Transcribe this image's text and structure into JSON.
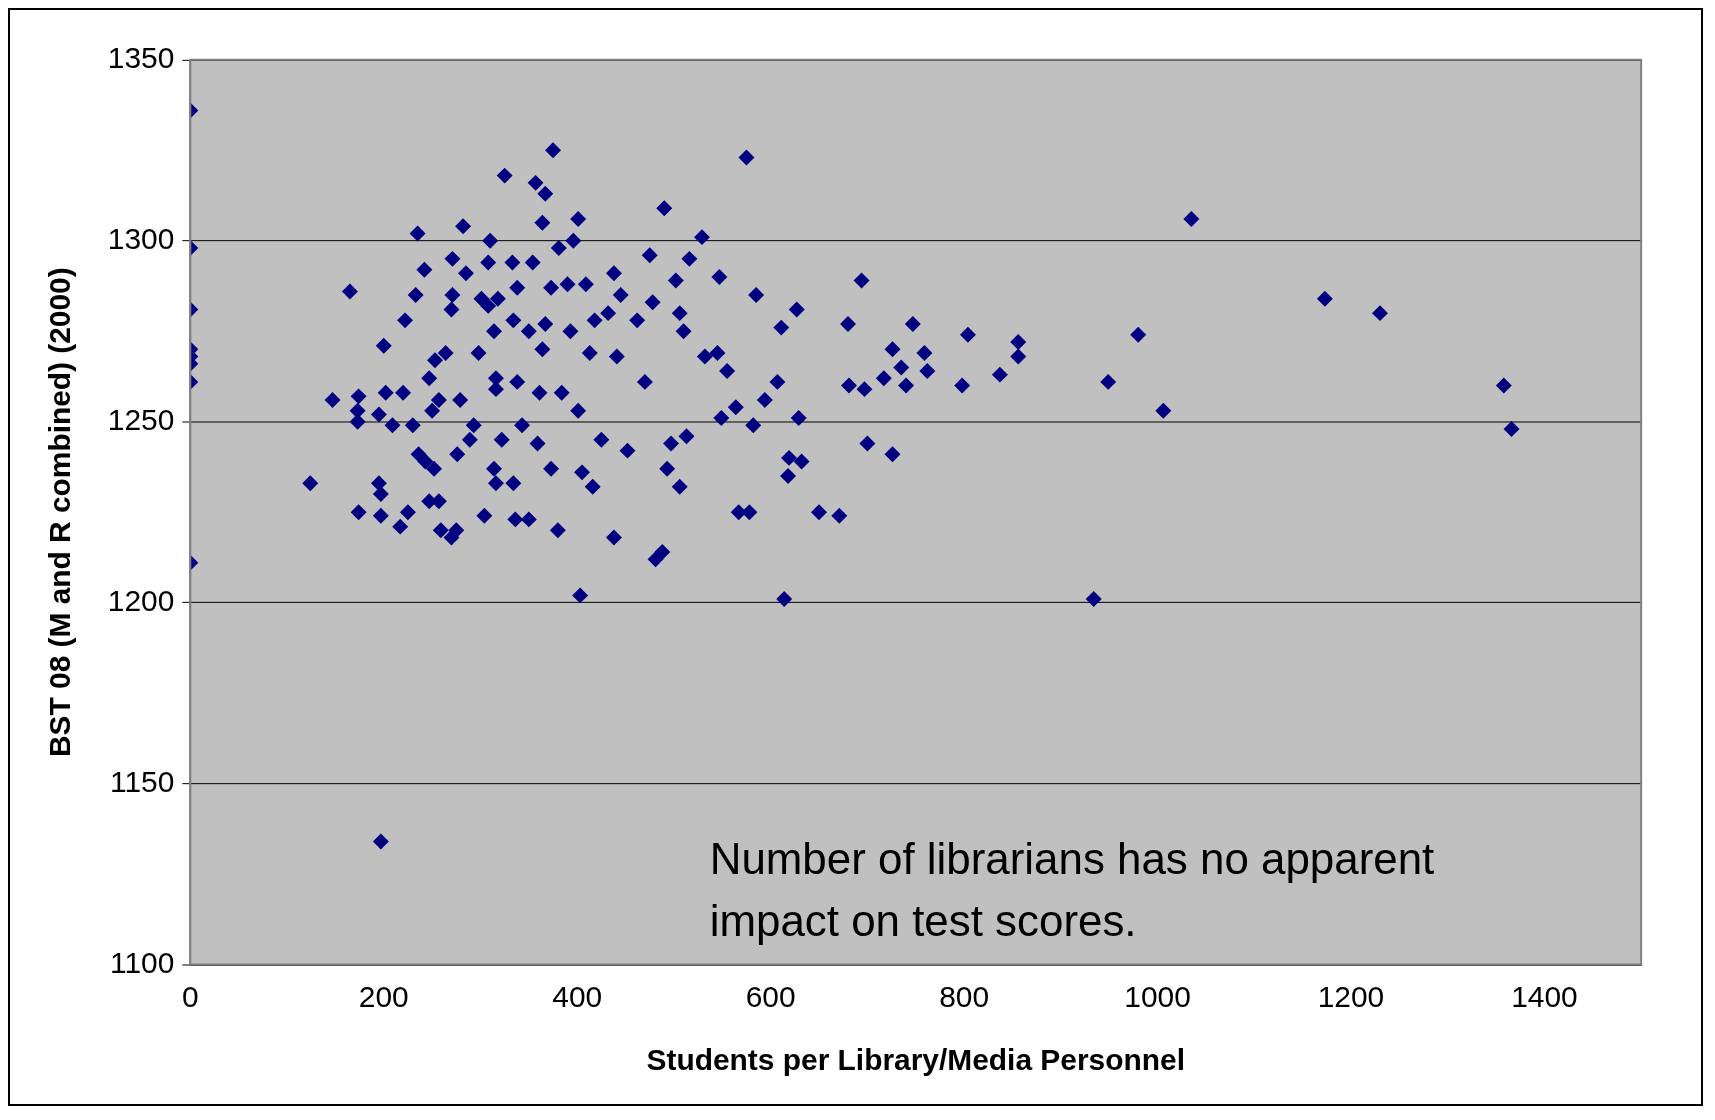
{
  "chart_data": {
    "type": "scatter",
    "xlabel": "Students per Library/Media Personnel",
    "ylabel": "BST 08 (M and R combined) (2000)",
    "annotations": [
      "Number of librarians has no apparent impact on test scores."
    ],
    "xlim": [
      0,
      1500
    ],
    "xticks": [
      0,
      200,
      400,
      600,
      800,
      1000,
      1200,
      1400
    ],
    "ylim": [
      1100,
      1350
    ],
    "yticks": [
      1100,
      1150,
      1200,
      1250,
      1300,
      1350
    ],
    "grid": "y",
    "legend": false,
    "marker": "diamond",
    "series": [
      {
        "color": "#000080",
        "x": [
          0,
          0,
          0,
          0,
          0,
          0,
          0,
          0,
          197,
          124,
          147,
          165,
          174,
          173,
          173,
          174,
          195,
          197,
          197,
          200,
          195,
          209,
          202,
          217,
          225,
          220,
          222,
          230,
          235,
          233,
          242,
          236,
          243,
          252,
          247,
          257,
          259,
          270,
          275,
          282,
          271,
          285,
          271,
          270,
          264,
          253,
          247,
          257,
          250,
          279,
          276,
          289,
          293,
          304,
          298,
          301,
          308,
          310,
          308,
          325,
          316,
          316,
          314,
          318,
          322,
          314,
          316,
          334,
          336,
          350,
          333,
          338,
          334,
          338,
          343,
          350,
          354,
          357,
          367,
          364,
          375,
          373,
          367,
          364,
          361,
          359,
          373,
          381,
          380,
          384,
          390,
          401,
          396,
          393,
          401,
          403,
          405,
          416,
          409,
          413,
          418,
          425,
          432,
          438,
          441,
          438,
          445,
          452,
          462,
          470,
          475,
          478,
          481,
          488,
          490,
          493,
          497,
          502,
          506,
          506,
          510,
          513,
          516,
          529,
          532,
          547,
          545,
          549,
          564,
          555,
          567,
          575,
          578,
          582,
          585,
          594,
          607,
          611,
          614,
          618,
          619,
          627,
          629,
          632,
          650,
          671,
          680,
          681,
          694,
          697,
          700,
          717,
          726,
          726,
          735,
          740,
          747,
          759,
          762,
          798,
          804,
          837,
          856,
          856,
          934,
          949,
          980,
          1006,
          1035,
          1173,
          1230,
          1358,
          1366
        ],
        "values": [
          1336,
          1298,
          1281,
          1270,
          1268,
          1266,
          1261,
          1211,
          1134,
          1233,
          1256,
          1286,
          1257,
          1253,
          1250,
          1225,
          1233,
          1230,
          1224,
          1271,
          1252,
          1249,
          1258,
          1221,
          1225,
          1258,
          1278,
          1249,
          1302,
          1285,
          1292,
          1241,
          1239,
          1237,
          1228,
          1228,
          1220,
          1218,
          1220,
          1304,
          1295,
          1291,
          1285,
          1281,
          1269,
          1267,
          1262,
          1256,
          1253,
          1256,
          1241,
          1245,
          1249,
          1224,
          1269,
          1284,
          1282,
          1300,
          1294,
          1318,
          1259,
          1262,
          1275,
          1284,
          1245,
          1237,
          1233,
          1233,
          1223,
          1223,
          1294,
          1287,
          1278,
          1261,
          1249,
          1275,
          1294,
          1316,
          1313,
          1305,
          1325,
          1287,
          1277,
          1270,
          1258,
          1244,
          1237,
          1298,
          1220,
          1258,
          1288,
          1306,
          1300,
          1275,
          1253,
          1202,
          1236,
          1232,
          1288,
          1269,
          1278,
          1245,
          1280,
          1291,
          1268,
          1218,
          1285,
          1242,
          1278,
          1261,
          1296,
          1283,
          1212,
          1214,
          1309,
          1237,
          1244,
          1289,
          1280,
          1232,
          1275,
          1246,
          1295,
          1301,
          1268,
          1290,
          1269,
          1251,
          1254,
          1264,
          1225,
          1323,
          1225,
          1249,
          1285,
          1256,
          1261,
          1276,
          1201,
          1235,
          1240,
          1281,
          1251,
          1239,
          1225,
          1224,
          1277,
          1260,
          1289,
          1259,
          1244,
          1262,
          1270,
          1241,
          1265,
          1260,
          1277,
          1269,
          1264,
          1260,
          1274,
          1263,
          1272,
          1268,
          1201,
          1261,
          1274,
          1253,
          1306,
          1284,
          1280,
          1260,
          1248
        ]
      }
    ]
  }
}
